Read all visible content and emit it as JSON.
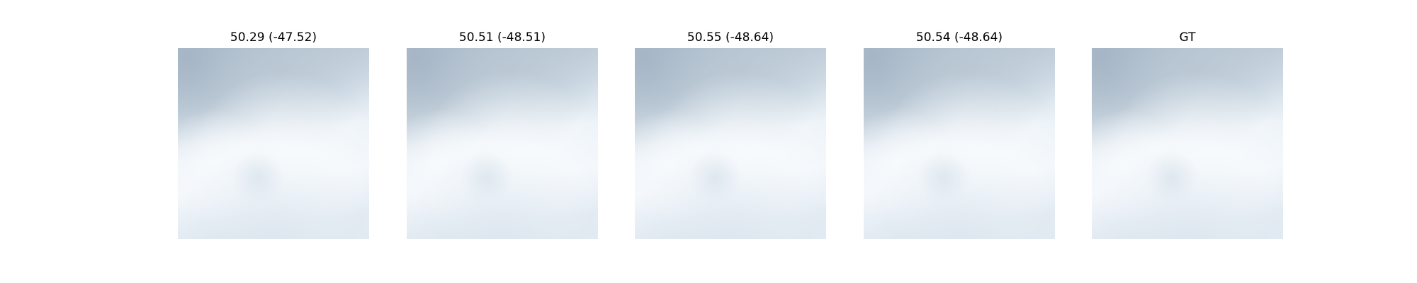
{
  "panels": [
    {
      "title": "50.29 (-47.52)"
    },
    {
      "title": "50.51 (-48.51)"
    },
    {
      "title": "50.55 (-48.64)"
    },
    {
      "title": "50.54 (-48.64)"
    },
    {
      "title": "GT"
    }
  ],
  "image": {
    "subject": "cloudy sky",
    "colors": {
      "dark_cloud": "#aab9c8",
      "mid_cloud": "#c9d6e1",
      "light_cloud": "#e6eef5",
      "bright": "#f6f9fc"
    }
  }
}
